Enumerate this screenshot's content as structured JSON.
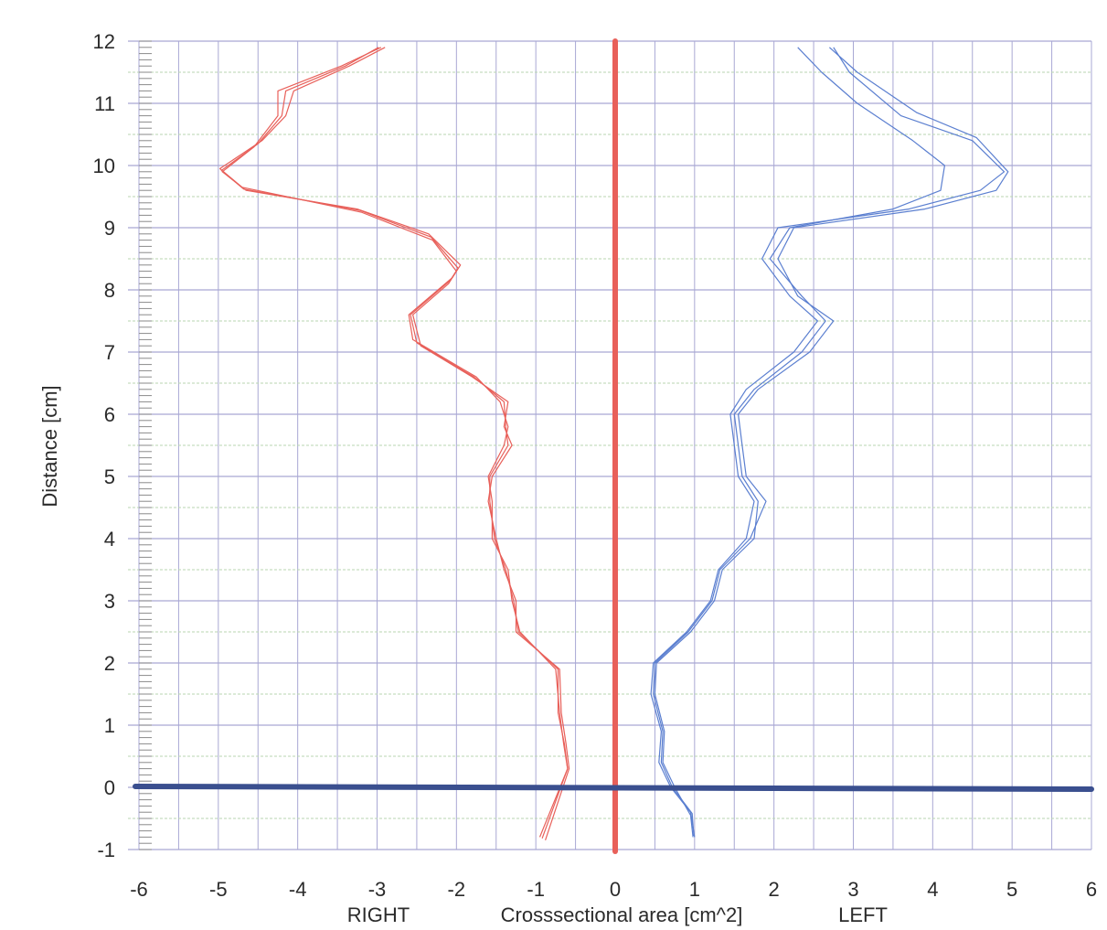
{
  "chart_data": {
    "type": "line",
    "title": "",
    "ylabel": "Distance [cm]",
    "xlabel": "Crosssectional area [cm^2]",
    "x_side_labels": {
      "left": "RIGHT",
      "right": "LEFT"
    },
    "xlim": [
      -6,
      6
    ],
    "ylim": [
      -1,
      12
    ],
    "x_ticks": [
      -6,
      -5,
      -4,
      -3,
      -2,
      -1,
      0,
      1,
      2,
      3,
      4,
      5,
      6
    ],
    "y_ticks": [
      -1,
      0,
      1,
      2,
      3,
      4,
      5,
      6,
      7,
      8,
      9,
      10,
      11,
      12
    ],
    "grid": true,
    "reference_lines": [
      {
        "orientation": "vertical",
        "value": 0,
        "color": "#e8605a"
      },
      {
        "orientation": "horizontal",
        "value": 0,
        "color": "#3a4f8f"
      }
    ],
    "series": [
      {
        "color": "#e8605a",
        "points": [
          [
            -0.95,
            -0.8
          ],
          [
            -0.6,
            0.3
          ],
          [
            -0.65,
            0.7
          ],
          [
            -0.7,
            1.2
          ],
          [
            -0.75,
            1.9
          ],
          [
            -1.2,
            2.5
          ],
          [
            -1.3,
            3.0
          ],
          [
            -1.35,
            3.5
          ],
          [
            -1.55,
            4.0
          ],
          [
            -1.55,
            4.6
          ],
          [
            -1.6,
            5.0
          ],
          [
            -1.4,
            5.5
          ],
          [
            -1.35,
            5.8
          ],
          [
            -1.45,
            6.2
          ],
          [
            -1.75,
            6.6
          ],
          [
            -2.55,
            7.2
          ],
          [
            -2.6,
            7.6
          ],
          [
            -2.05,
            8.2
          ],
          [
            -1.95,
            8.4
          ],
          [
            -2.35,
            8.9
          ],
          [
            -3.25,
            9.3
          ],
          [
            -4.65,
            9.6
          ],
          [
            -4.95,
            9.9
          ],
          [
            -4.55,
            10.3
          ],
          [
            -4.25,
            10.8
          ],
          [
            -4.25,
            11.2
          ],
          [
            -3.45,
            11.6
          ],
          [
            -2.95,
            11.9
          ]
        ]
      },
      {
        "color": "#e8605a",
        "points": [
          [
            -0.88,
            -0.85
          ],
          [
            -0.58,
            0.3
          ],
          [
            -0.62,
            0.7
          ],
          [
            -0.68,
            1.2
          ],
          [
            -0.7,
            1.9
          ],
          [
            -1.25,
            2.5
          ],
          [
            -1.25,
            3.0
          ],
          [
            -1.4,
            3.5
          ],
          [
            -1.5,
            4.0
          ],
          [
            -1.6,
            4.6
          ],
          [
            -1.55,
            5.0
          ],
          [
            -1.3,
            5.5
          ],
          [
            -1.4,
            5.8
          ],
          [
            -1.35,
            6.2
          ],
          [
            -1.8,
            6.6
          ],
          [
            -2.45,
            7.1
          ],
          [
            -2.55,
            7.6
          ],
          [
            -2.1,
            8.1
          ],
          [
            -2.0,
            8.3
          ],
          [
            -2.3,
            8.8
          ],
          [
            -3.2,
            9.25
          ],
          [
            -4.7,
            9.65
          ],
          [
            -4.98,
            9.95
          ],
          [
            -4.45,
            10.4
          ],
          [
            -4.15,
            10.8
          ],
          [
            -4.05,
            11.2
          ],
          [
            -3.35,
            11.6
          ],
          [
            -2.9,
            11.9
          ]
        ]
      },
      {
        "color": "#e8605a",
        "points": [
          [
            -0.92,
            -0.82
          ],
          [
            -0.6,
            0.3
          ],
          [
            -0.64,
            0.7
          ],
          [
            -0.72,
            1.2
          ],
          [
            -0.72,
            1.9
          ],
          [
            -1.22,
            2.5
          ],
          [
            -1.28,
            3.0
          ],
          [
            -1.38,
            3.5
          ],
          [
            -1.52,
            4.0
          ],
          [
            -1.58,
            4.6
          ],
          [
            -1.58,
            5.0
          ],
          [
            -1.35,
            5.5
          ],
          [
            -1.38,
            5.8
          ],
          [
            -1.4,
            6.2
          ],
          [
            -1.78,
            6.6
          ],
          [
            -2.5,
            7.15
          ],
          [
            -2.58,
            7.6
          ],
          [
            -2.08,
            8.15
          ],
          [
            -1.98,
            8.35
          ],
          [
            -2.32,
            8.85
          ],
          [
            -3.22,
            9.28
          ],
          [
            -4.68,
            9.62
          ],
          [
            -4.96,
            9.92
          ],
          [
            -4.5,
            10.35
          ],
          [
            -4.2,
            10.8
          ],
          [
            -4.15,
            11.2
          ],
          [
            -3.4,
            11.6
          ],
          [
            -2.98,
            11.9
          ]
        ]
      },
      {
        "color": "#5b7fd0",
        "points": [
          [
            0.98,
            -0.8
          ],
          [
            0.95,
            -0.45
          ],
          [
            0.75,
            0.0
          ],
          [
            0.6,
            0.4
          ],
          [
            0.62,
            0.9
          ],
          [
            0.5,
            1.5
          ],
          [
            0.52,
            2.0
          ],
          [
            0.95,
            2.5
          ],
          [
            1.25,
            3.0
          ],
          [
            1.35,
            3.5
          ],
          [
            1.75,
            4.0
          ],
          [
            1.8,
            4.6
          ],
          [
            1.6,
            5.0
          ],
          [
            1.55,
            5.5
          ],
          [
            1.5,
            6.0
          ],
          [
            1.75,
            6.4
          ],
          [
            2.35,
            7.0
          ],
          [
            2.65,
            7.5
          ],
          [
            2.35,
            7.9
          ],
          [
            1.95,
            8.5
          ],
          [
            2.2,
            9.0
          ],
          [
            3.5,
            9.3
          ],
          [
            4.1,
            9.6
          ],
          [
            4.15,
            10.0
          ],
          [
            3.75,
            10.4
          ],
          [
            3.05,
            11.0
          ],
          [
            2.6,
            11.5
          ],
          [
            2.3,
            11.9
          ]
        ]
      },
      {
        "color": "#5b7fd0",
        "points": [
          [
            1.0,
            -0.8
          ],
          [
            0.95,
            -0.4
          ],
          [
            0.7,
            0.0
          ],
          [
            0.55,
            0.4
          ],
          [
            0.58,
            0.9
          ],
          [
            0.45,
            1.5
          ],
          [
            0.48,
            2.0
          ],
          [
            0.9,
            2.5
          ],
          [
            1.2,
            3.0
          ],
          [
            1.3,
            3.5
          ],
          [
            1.65,
            4.0
          ],
          [
            1.75,
            4.6
          ],
          [
            1.55,
            5.0
          ],
          [
            1.5,
            5.5
          ],
          [
            1.45,
            6.0
          ],
          [
            1.65,
            6.4
          ],
          [
            2.25,
            7.0
          ],
          [
            2.55,
            7.5
          ],
          [
            2.2,
            7.9
          ],
          [
            1.85,
            8.5
          ],
          [
            2.05,
            9.0
          ],
          [
            3.7,
            9.3
          ],
          [
            4.6,
            9.6
          ],
          [
            4.9,
            9.9
          ],
          [
            4.5,
            10.4
          ],
          [
            3.6,
            10.8
          ],
          [
            2.95,
            11.5
          ],
          [
            2.75,
            11.9
          ]
        ]
      },
      {
        "color": "#5b7fd0",
        "points": [
          [
            0.99,
            -0.78
          ],
          [
            0.97,
            -0.42
          ],
          [
            0.72,
            0.0
          ],
          [
            0.58,
            0.4
          ],
          [
            0.6,
            0.9
          ],
          [
            0.48,
            1.5
          ],
          [
            0.5,
            2.0
          ],
          [
            0.92,
            2.5
          ],
          [
            1.22,
            3.0
          ],
          [
            1.32,
            3.5
          ],
          [
            1.7,
            4.0
          ],
          [
            1.9,
            4.6
          ],
          [
            1.65,
            5.0
          ],
          [
            1.6,
            5.5
          ],
          [
            1.55,
            6.0
          ],
          [
            1.8,
            6.4
          ],
          [
            2.45,
            7.0
          ],
          [
            2.75,
            7.5
          ],
          [
            2.3,
            7.9
          ],
          [
            2.05,
            8.5
          ],
          [
            2.25,
            9.0
          ],
          [
            3.9,
            9.3
          ],
          [
            4.8,
            9.6
          ],
          [
            4.95,
            9.9
          ],
          [
            4.55,
            10.45
          ],
          [
            3.8,
            10.85
          ],
          [
            3.05,
            11.5
          ],
          [
            2.7,
            11.9
          ]
        ]
      }
    ]
  }
}
